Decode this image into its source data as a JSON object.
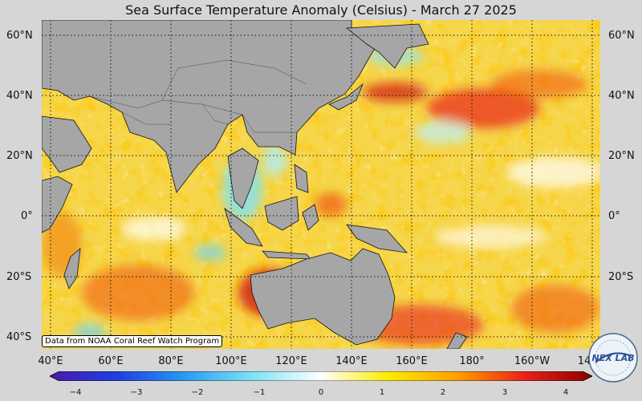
{
  "title": "Sea Surface Temperature Anomaly (Celsius) - March 27 2025",
  "credit": "Data from NOAA Coral Reef Watch Program",
  "map": {
    "type": "heatmap",
    "variable": "Sea Surface Temperature Anomaly",
    "units": "Celsius",
    "date": "March 27 2025",
    "lat_labels": [
      "60°N",
      "40°N",
      "20°N",
      "0°",
      "20°S",
      "40°S"
    ],
    "lon_labels": [
      "40°E",
      "60°E",
      "80°E",
      "100°E",
      "120°E",
      "140°E",
      "160°E",
      "180°",
      "160°W",
      "14"
    ],
    "lat_range": [
      -44,
      65
    ],
    "lon_range": [
      38,
      224
    ],
    "land_color": "#a6a6a6",
    "grid": "dotted"
  },
  "colorbar": {
    "ticks": [
      "−4",
      "−3",
      "−2",
      "−1",
      "0",
      "1",
      "2",
      "3",
      "4"
    ],
    "range": [
      -4,
      4
    ],
    "stops": [
      "#4a1aa8",
      "#1f3fe0",
      "#2a9bf0",
      "#7fe3f7",
      "#ffffff",
      "#ffea00",
      "#ffa000",
      "#e8221a",
      "#8c0000"
    ]
  },
  "logo": {
    "text": "NEX LAB"
  }
}
